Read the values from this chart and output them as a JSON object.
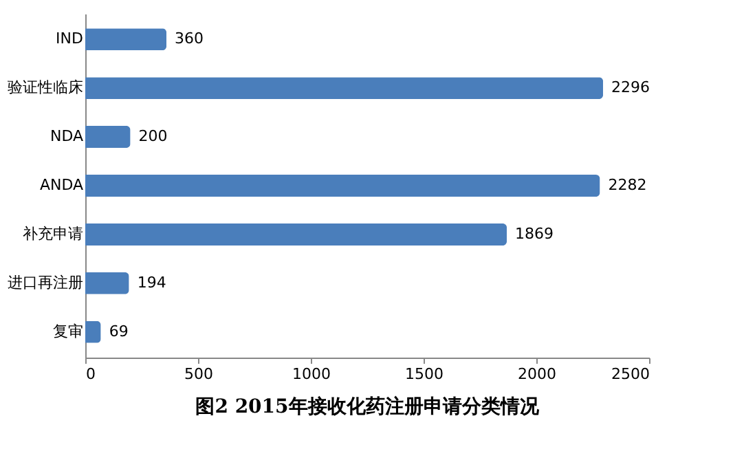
{
  "chart_data": {
    "type": "bar",
    "orientation": "horizontal",
    "title": "图2 2015年接收化药注册申请分类情况",
    "categories": [
      "IND",
      "验证性临床",
      "NDA",
      "ANDA",
      "补充申请",
      "进口再注册",
      "复审"
    ],
    "values": [
      360,
      2296,
      200,
      2282,
      1869,
      194,
      69
    ],
    "color": "#4a7ebb",
    "xlim": [
      0,
      2500
    ],
    "xticks": [
      0,
      500,
      1000,
      1500,
      2000,
      2500
    ],
    "data_labels": true,
    "grid": false
  }
}
